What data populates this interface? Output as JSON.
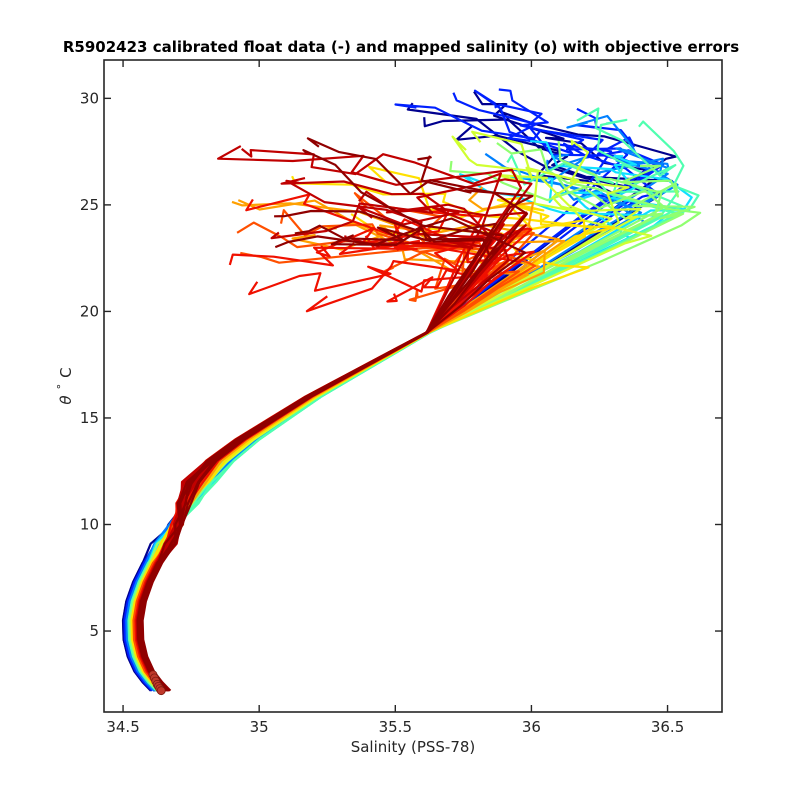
{
  "chart_data": {
    "type": "line",
    "title": "R5902423 calibrated float data (-) and mapped salinity (o) with objective errors",
    "xlabel": "Salinity (PSS-78)",
    "ylabel_symbol": "θ",
    "ylabel_degree": "°",
    "ylabel_unit": "C",
    "xlim": [
      34.43,
      36.7
    ],
    "ylim": [
      1.2,
      31.8
    ],
    "x_ticks": [
      34.5,
      35,
      35.5,
      36,
      36.5
    ],
    "x_tick_labels": [
      "34.5",
      "35",
      "35.5",
      "36",
      "36.5"
    ],
    "y_ticks": [
      5,
      10,
      15,
      20,
      25,
      30
    ],
    "y_tick_labels": [
      "5",
      "10",
      "15",
      "20",
      "25",
      "30"
    ],
    "colormap": "jet",
    "colorbar_shown": false,
    "grid": false,
    "legend": "none",
    "mapped_salinity_markers": {
      "marker": "circle",
      "color": "#c0392b",
      "points": [
        {
          "x": 34.61,
          "y": 2.95
        },
        {
          "x": 34.615,
          "y": 2.8
        },
        {
          "x": 34.62,
          "y": 2.65
        },
        {
          "x": 34.625,
          "y": 2.5
        },
        {
          "x": 34.63,
          "y": 2.4
        },
        {
          "x": 34.635,
          "y": 2.3
        },
        {
          "x": 34.64,
          "y": 2.2
        }
      ]
    },
    "deep_tail_profile": [
      {
        "x": 34.63,
        "y": 2.2
      },
      {
        "x": 34.6,
        "y": 2.6
      },
      {
        "x": 34.57,
        "y": 3.1
      },
      {
        "x": 34.545,
        "y": 3.8
      },
      {
        "x": 34.53,
        "y": 4.6
      },
      {
        "x": 34.528,
        "y": 5.5
      },
      {
        "x": 34.54,
        "y": 6.4
      },
      {
        "x": 34.565,
        "y": 7.3
      },
      {
        "x": 34.6,
        "y": 8.2
      },
      {
        "x": 34.645,
        "y": 9.1
      },
      {
        "x": 34.69,
        "y": 10.0
      },
      {
        "x": 34.73,
        "y": 11.0
      },
      {
        "x": 34.78,
        "y": 12.0
      },
      {
        "x": 34.86,
        "y": 13.0
      },
      {
        "x": 34.96,
        "y": 14.0
      },
      {
        "x": 35.08,
        "y": 15.0
      },
      {
        "x": 35.2,
        "y": 16.0
      },
      {
        "x": 35.34,
        "y": 17.0
      },
      {
        "x": 35.48,
        "y": 18.0
      },
      {
        "x": 35.62,
        "y": 19.0
      },
      {
        "x": 35.75,
        "y": 20.0
      },
      {
        "x": 35.87,
        "y": 21.0
      }
    ],
    "profile_groups": [
      {
        "color": "#00008f",
        "count": 5,
        "deep_shift": -0.02,
        "mid_shift": 0.03,
        "ml_salinity": [
          35.45,
          36.25
        ],
        "ml_temp": [
          28.5,
          30.8
        ],
        "peak_s": [
          36.35,
          36.5
        ],
        "peak_t": [
          24.5,
          27.5
        ]
      },
      {
        "color": "#0020ff",
        "count": 6,
        "deep_shift": -0.015,
        "mid_shift": 0.03,
        "ml_salinity": [
          35.45,
          36.25
        ],
        "ml_temp": [
          28.5,
          30.5
        ],
        "peak_s": [
          36.35,
          36.5
        ],
        "peak_t": [
          24.5,
          27.5
        ]
      },
      {
        "color": "#0080ff",
        "count": 4,
        "deep_shift": -0.01,
        "mid_shift": 0.03,
        "ml_salinity": [
          35.6,
          36.4
        ],
        "ml_temp": [
          27.0,
          29.0
        ],
        "peak_s": [
          36.35,
          36.55
        ],
        "peak_t": [
          24.0,
          26.5
        ]
      },
      {
        "color": "#10e0ff",
        "count": 4,
        "deep_shift": -0.005,
        "mid_shift": 0.03,
        "ml_salinity": [
          35.6,
          36.4
        ],
        "ml_temp": [
          26.0,
          29.0
        ],
        "peak_s": [
          36.4,
          36.55
        ],
        "peak_t": [
          23.5,
          25.5
        ]
      },
      {
        "color": "#50ffb0",
        "count": 4,
        "deep_shift": 0.0,
        "mid_shift": 0.03,
        "ml_salinity": [
          35.7,
          36.5
        ],
        "ml_temp": [
          26.0,
          29.0
        ],
        "peak_s": [
          36.45,
          36.6
        ],
        "peak_t": [
          24.0,
          25.5
        ]
      },
      {
        "color": "#90ff70",
        "count": 5,
        "deep_shift": 0.0,
        "mid_shift": 0.02,
        "ml_salinity": [
          35.7,
          36.5
        ],
        "ml_temp": [
          26.0,
          28.5
        ],
        "peak_s": [
          36.45,
          36.6
        ],
        "peak_t": [
          24.0,
          25.0
        ]
      },
      {
        "color": "#d0ff30",
        "count": 4,
        "deep_shift": 0.005,
        "mid_shift": 0.01,
        "ml_salinity": [
          35.4,
          36.3
        ],
        "ml_temp": [
          26.0,
          28.0
        ],
        "peak_s": [
          36.2,
          36.5
        ],
        "peak_t": [
          22.5,
          24.5
        ]
      },
      {
        "color": "#ffe000",
        "count": 4,
        "deep_shift": 0.01,
        "mid_shift": 0.0,
        "ml_salinity": [
          35.0,
          36.0
        ],
        "ml_temp": [
          24.0,
          27.0
        ],
        "peak_s": [
          36.1,
          36.3
        ],
        "peak_t": [
          22.0,
          24.0
        ]
      },
      {
        "color": "#ffa000",
        "count": 5,
        "deep_shift": 0.015,
        "mid_shift": -0.02,
        "ml_salinity": [
          34.9,
          35.9
        ],
        "ml_temp": [
          23.0,
          26.0
        ],
        "peak_s": [
          35.95,
          36.15
        ],
        "peak_t": [
          21.5,
          23.5
        ]
      },
      {
        "color": "#ff5000",
        "count": 7,
        "deep_shift": 0.02,
        "mid_shift": -0.03,
        "ml_salinity": [
          34.9,
          35.6
        ],
        "ml_temp": [
          20.5,
          26.0
        ],
        "peak_s": [
          35.8,
          36.05
        ],
        "peak_t": [
          21.5,
          24.0
        ]
      },
      {
        "color": "#f01000",
        "count": 9,
        "deep_shift": 0.025,
        "mid_shift": -0.03,
        "ml_salinity": [
          34.88,
          35.55
        ],
        "ml_temp": [
          20.5,
          26.5
        ],
        "peak_s": [
          35.8,
          36.0
        ],
        "peak_t": [
          21.5,
          24.5
        ]
      },
      {
        "color": "#c00000",
        "count": 8,
        "deep_shift": 0.03,
        "mid_shift": -0.04,
        "ml_salinity": [
          34.88,
          35.5
        ],
        "ml_temp": [
          22.0,
          28.0
        ],
        "peak_s": [
          35.85,
          36.0
        ],
        "peak_t": [
          22.0,
          26.5
        ]
      },
      {
        "color": "#900000",
        "count": 7,
        "deep_shift": 0.035,
        "mid_shift": -0.04,
        "ml_salinity": [
          34.95,
          35.6
        ],
        "ml_temp": [
          22.5,
          28.0
        ],
        "peak_s": [
          35.85,
          36.05
        ],
        "peak_t": [
          21.5,
          25.0
        ]
      }
    ]
  }
}
